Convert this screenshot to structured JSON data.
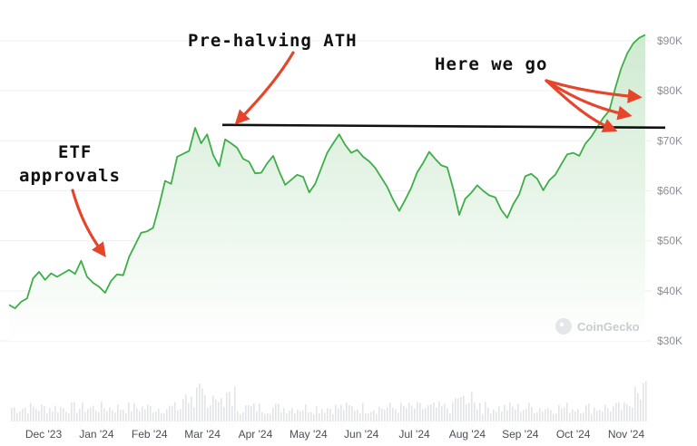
{
  "chart_data": {
    "type": "area",
    "x_labels": [
      "Dec '23",
      "Jan '24",
      "Feb '24",
      "Mar '24",
      "Apr '24",
      "May '24",
      "Jun '24",
      "Jul '24",
      "Aug '24",
      "Sep '24",
      "Oct '24",
      "Nov '24"
    ],
    "y_ticks": [
      "$30K",
      "$40K",
      "$50K",
      "$60K",
      "$70K",
      "$80K",
      "$90K"
    ],
    "ylim": [
      30000,
      90000
    ],
    "grid": "horizontal",
    "series": [
      {
        "values": [
          37200,
          36500,
          37800,
          38500,
          42500,
          43800,
          42200,
          43500,
          42800,
          43500,
          44200,
          43400,
          46000,
          42800,
          41600,
          40800,
          39600,
          42000,
          43300,
          43100,
          46800,
          49200,
          51600,
          51900,
          52600,
          57000,
          62000,
          61400,
          66800,
          67400,
          68000,
          72600,
          69500,
          71300,
          67200,
          64900,
          70300,
          69500,
          68600,
          66400,
          65800,
          63500,
          63600,
          65500,
          67000,
          63900,
          61200,
          62200,
          63200,
          62800,
          59700,
          61400,
          64500,
          67600,
          69500,
          71300,
          69200,
          67600,
          68200,
          66800,
          65900,
          64600,
          62700,
          60800,
          58200,
          56000,
          58200,
          60600,
          63700,
          65600,
          67800,
          66400,
          65100,
          64700,
          60400,
          55200,
          58400,
          59600,
          61100,
          60000,
          59100,
          58700,
          56200,
          54600,
          57300,
          59300,
          62900,
          63400,
          62400,
          60100,
          62100,
          63200,
          65300,
          67300,
          67600,
          67000,
          69400,
          70800,
          72700,
          74600,
          76000,
          80500,
          84500,
          87500,
          89500,
          90600,
          91200
        ]
      }
    ],
    "annotations": [
      {
        "text": "Pre-halving ATH",
        "x_label": "Mar '24",
        "value": 73000
      },
      {
        "text": "ETF\napprovals",
        "x_label": "Jan '24",
        "value": 47000
      },
      {
        "text": "Here we go",
        "x_label": "Nov '24",
        "value": 80000
      }
    ],
    "reference_line": {
      "value": 73000
    },
    "watermark": "CoinGecko"
  },
  "colors": {
    "line": "#3fae49",
    "fill": "#d9efd9",
    "arrow": "#e5452b",
    "ath_line": "#111111",
    "volume": "#e3e4e7"
  },
  "annotations_text": {
    "ath_label": "Pre-halving ATH",
    "etf_label_1": "ETF",
    "etf_label_2": "approvals",
    "go_label": "Here we go"
  }
}
